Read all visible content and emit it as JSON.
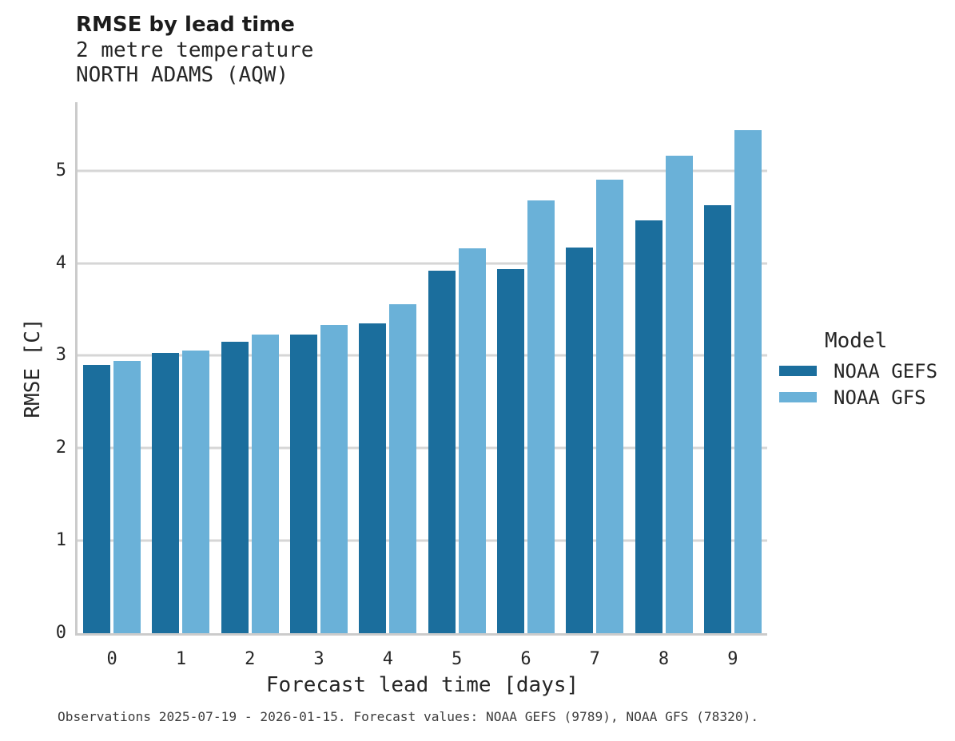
{
  "header": {
    "title": "RMSE by lead time",
    "subtitle": "2 metre temperature",
    "station": "NORTH ADAMS (AQW)"
  },
  "chart_data": {
    "type": "bar",
    "title": "RMSE by lead time",
    "subtitle": "2 metre temperature",
    "station": "NORTH ADAMS (AQW)",
    "xlabel": "Forecast lead time [days]",
    "ylabel": "RMSE [C]",
    "categories": [
      "0",
      "1",
      "2",
      "3",
      "4",
      "5",
      "6",
      "7",
      "8",
      "9"
    ],
    "series": [
      {
        "name": "NOAA GEFS",
        "color": "#1b6e9d",
        "values": [
          2.9,
          3.03,
          3.15,
          3.23,
          3.35,
          3.92,
          3.94,
          4.17,
          4.46,
          4.63
        ]
      },
      {
        "name": "NOAA GFS",
        "color": "#6ab1d8",
        "values": [
          2.94,
          3.06,
          3.23,
          3.33,
          3.56,
          4.16,
          4.68,
          4.9,
          5.16,
          5.44
        ]
      }
    ],
    "ylim": [
      0,
      5.74
    ],
    "yticks": [
      0,
      1,
      2,
      3,
      4,
      5
    ],
    "grid": "horizontal-only",
    "legend_position": "right-outside"
  },
  "legend": {
    "title": "Model",
    "items": [
      {
        "label": "NOAA GEFS",
        "color": "#1b6e9d"
      },
      {
        "label": "NOAA GFS",
        "color": "#6ab1d8"
      }
    ]
  },
  "footer": {
    "note": "Observations 2025-07-19 - 2026-01-15. Forecast values: NOAA GEFS (9789), NOAA GFS (78320)."
  },
  "colors": {
    "gefs": "#1b6e9d",
    "gfs": "#6ab1d8",
    "gridline": "#d6d6d6",
    "spine": "#cbcbcb",
    "text": "#262626",
    "background": "#ffffff"
  }
}
